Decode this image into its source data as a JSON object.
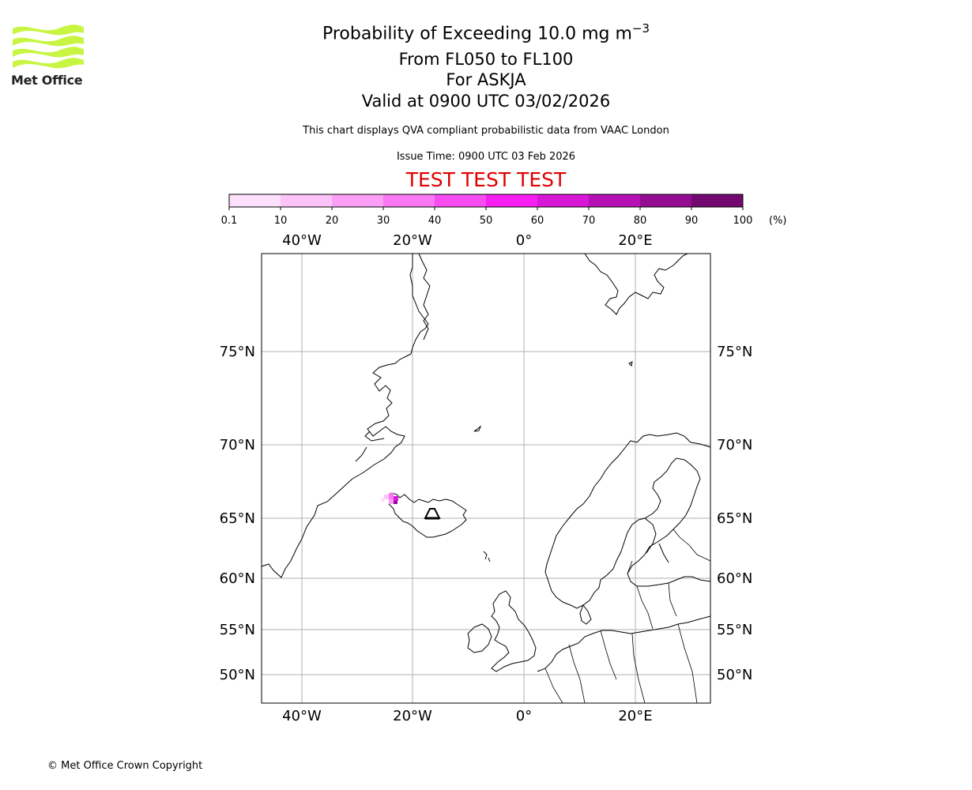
{
  "header": {
    "title_prefix": "Probability of Exceeding 10.0 mg m",
    "title_exponent": "−3",
    "flight_levels": "From FL050 to FL100",
    "volcano": "For ASKJA",
    "valid_time": "Valid at 0900 UTC 03/02/2026",
    "description": "This chart displays QVA compliant probabilistic data from VAAC London",
    "issue_time": "Issue Time: 0900 UTC 03 Feb 2026",
    "test_banner": "TEST TEST TEST"
  },
  "logo": {
    "text": "Met Office",
    "color": "#c8f542"
  },
  "footer": {
    "copyright": "© Met Office Crown Copyright"
  },
  "colorbar": {
    "unit_label": "(%)",
    "ticks": [
      "0.1",
      "10",
      "20",
      "30",
      "40",
      "50",
      "60",
      "70",
      "80",
      "90",
      "100"
    ],
    "colors": [
      "#fde0fb",
      "#fcc3f8",
      "#fb9ff6",
      "#fa78f4",
      "#f84cf2",
      "#f61ef0",
      "#d816d6",
      "#b611b4",
      "#940c92",
      "#730870"
    ]
  },
  "map": {
    "lon_labels": [
      "40°W",
      "20°W",
      "0°",
      "20°E"
    ],
    "lat_labels": [
      "75°N",
      "70°N",
      "65°N",
      "60°N",
      "55°N",
      "50°N"
    ],
    "volcano_marker": "ASKJA",
    "probability_color": "#e040e8"
  }
}
